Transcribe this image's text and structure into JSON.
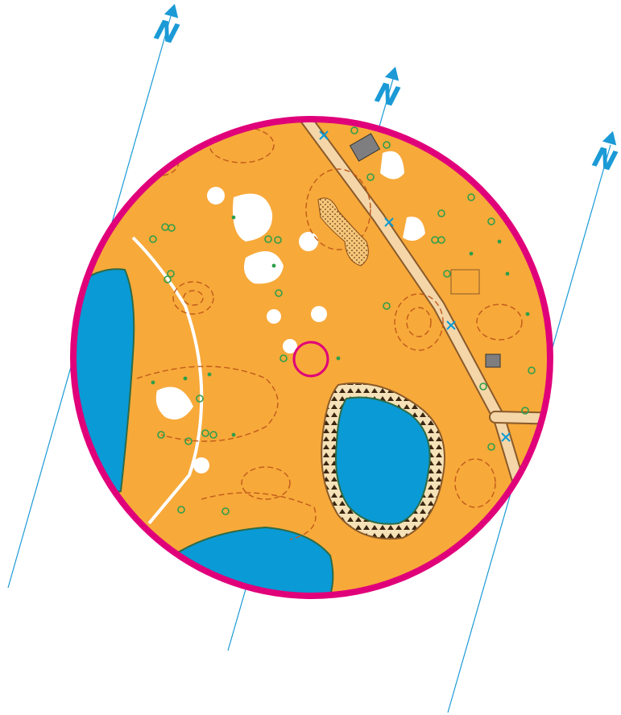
{
  "map": {
    "kind": "orienteering-map-excerpt",
    "colors": {
      "background": "#ffffff",
      "open_land": "#F7A93A",
      "forest_white": "#ffffff",
      "water": "#0A9AD6",
      "water_edge": "#2E6B45",
      "marsh_green": "#3AAE49",
      "contour_brown": "#C05A1A",
      "road_fill": "#F4D6A8",
      "road_edge": "#8A5A2A",
      "building_grey": "#7E7E80",
      "magnetic_north_line": "#1B9AD6",
      "circle_border": "#E0007A",
      "control_circle": "#E0007A",
      "boulder_green": "#2E9E4A",
      "cliff_black": "#1B1B1B"
    },
    "north_arrows": [
      {
        "label": "N",
        "icon": "north-arrow-icon"
      },
      {
        "label": "N",
        "icon": "north-arrow-icon"
      },
      {
        "label": "N",
        "icon": "north-arrow-icon"
      }
    ],
    "features": {
      "lakes": 3,
      "control_circles": 1,
      "buildings": 3
    }
  }
}
